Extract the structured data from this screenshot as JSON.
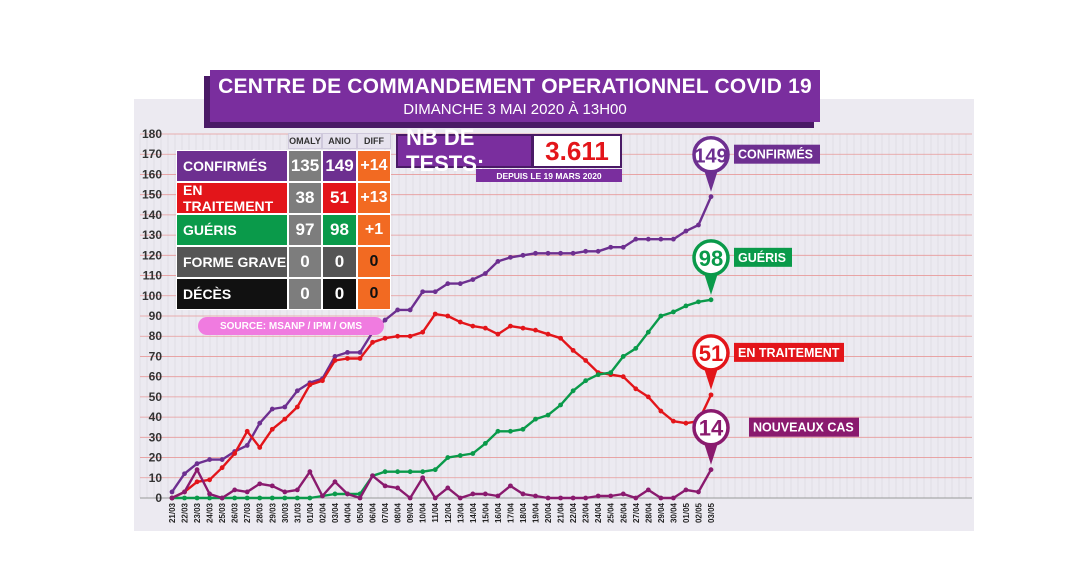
{
  "header": {
    "title": "CENTRE DE COMMANDEMENT OPERATIONNEL COVID 19",
    "subtitle": "DIMANCHE 3 MAI 2020 À 13H00"
  },
  "table": {
    "col_headers": [
      "OMALY",
      "ANIO",
      "DIFF"
    ],
    "rows": [
      {
        "label": "CONFIRMÉS",
        "omaly": "135",
        "anio": "149",
        "diff": "+14",
        "label_color": "#6d2f90",
        "diff_color": "#f26a22"
      },
      {
        "label": "EN TRAITEMENT",
        "omaly": "38",
        "anio": "51",
        "diff": "+13",
        "label_color": "#e3151a",
        "diff_color": "#f26a22"
      },
      {
        "label": "GUÉRIS",
        "omaly": "97",
        "anio": "98",
        "diff": "+1",
        "label_color": "#0a9a4a",
        "diff_color": "#f26a22"
      },
      {
        "label": "FORME GRAVE",
        "omaly": "0",
        "anio": "0",
        "diff": "0",
        "label_color": "#555555",
        "diff_color": "#f26a22"
      },
      {
        "label": "DÉCÈS",
        "omaly": "0",
        "anio": "0",
        "diff": "0",
        "label_color": "#111111",
        "diff_color": "#f26a22"
      }
    ],
    "source": "SOURCE: MSANP / IPM / OMS"
  },
  "tests": {
    "label": "NB DE TESTS:",
    "value": "3.611",
    "since": "DEPUIS LE 19 MARS 2020"
  },
  "chart_data": {
    "type": "line",
    "x": [
      "21/03",
      "22/03",
      "23/03",
      "24/03",
      "25/03",
      "26/03",
      "27/03",
      "28/03",
      "29/03",
      "30/03",
      "31/03",
      "01/04",
      "02/04",
      "03/04",
      "04/04",
      "05/04",
      "06/04",
      "07/04",
      "08/04",
      "09/04",
      "10/04",
      "11/04",
      "12/04",
      "13/04",
      "14/04",
      "15/04",
      "16/04",
      "17/04",
      "18/04",
      "19/04",
      "20/04",
      "21/04",
      "22/04",
      "23/04",
      "24/04",
      "25/04",
      "26/04",
      "27/04",
      "28/04",
      "29/04",
      "30/04",
      "01/05",
      "02/05",
      "03/05"
    ],
    "ylim": [
      0,
      180
    ],
    "yticks": [
      0,
      10,
      20,
      30,
      40,
      50,
      60,
      70,
      80,
      90,
      100,
      110,
      120,
      130,
      140,
      150,
      160,
      170,
      180
    ],
    "grid": true,
    "series": [
      {
        "key": "confirmes",
        "color": "#6d2f90",
        "values": [
          3,
          12,
          17,
          19,
          19,
          23,
          26,
          37,
          44,
          45,
          53,
          57,
          59,
          70,
          72,
          72,
          82,
          88,
          93,
          93,
          102,
          102,
          106,
          106,
          108,
          111,
          117,
          119,
          120,
          121,
          121,
          121,
          121,
          122,
          122,
          124,
          124,
          128,
          128,
          128,
          128,
          132,
          135,
          149
        ]
      },
      {
        "key": "traitement",
        "color": "#e3151a",
        "values": [
          0,
          3,
          8,
          9,
          15,
          22,
          33,
          25,
          34,
          39,
          45,
          56,
          58,
          68,
          69,
          69,
          77,
          79,
          80,
          80,
          82,
          91,
          90,
          87,
          85,
          84,
          81,
          85,
          84,
          83,
          81,
          79,
          73,
          68,
          62,
          61,
          60,
          54,
          50,
          43,
          38,
          37,
          38,
          51
        ]
      },
      {
        "key": "gueris",
        "color": "#0a9a4a",
        "values": [
          0,
          0,
          0,
          0,
          0,
          0,
          0,
          0,
          0,
          0,
          0,
          0,
          1,
          2,
          2,
          2,
          11,
          13,
          13,
          13,
          13,
          14,
          20,
          21,
          22,
          27,
          33,
          33,
          34,
          39,
          41,
          46,
          53,
          58,
          61,
          62,
          70,
          74,
          82,
          90,
          92,
          95,
          97,
          98
        ]
      },
      {
        "key": "nouveaux",
        "color": "#8a1a6e",
        "values": [
          0,
          3,
          14,
          2,
          0,
          4,
          3,
          7,
          6,
          3,
          4,
          13,
          1,
          8,
          2,
          0,
          11,
          6,
          5,
          0,
          10,
          0,
          5,
          0,
          2,
          2,
          1,
          6,
          2,
          1,
          0,
          0,
          0,
          0,
          1,
          1,
          2,
          0,
          4,
          0,
          0,
          4,
          3,
          14
        ]
      }
    ],
    "callouts": [
      {
        "series": "confirmes",
        "number": "149",
        "label": "CONFIRMÉS"
      },
      {
        "series": "gueris",
        "number": "98",
        "label": "GUÉRIS"
      },
      {
        "series": "traitement",
        "number": "51",
        "label": "EN TRAITEMENT"
      },
      {
        "series": "nouveaux",
        "number": "14",
        "label": "NOUVEAUX CAS"
      }
    ]
  }
}
